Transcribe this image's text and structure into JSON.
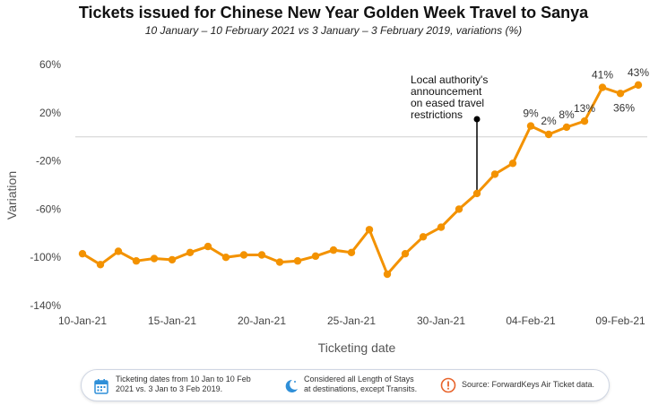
{
  "chart_data": {
    "type": "line",
    "title": "Tickets issued for Chinese New Year Golden Week Travel to Sanya",
    "subtitle": "10 January – 10 February 2021 vs 3 January – 3 February 2019, variations (%)",
    "xlabel": "Ticketing date",
    "ylabel": "Variation",
    "x_tick_labels": [
      "10-Jan-21",
      "15-Jan-21",
      "20-Jan-21",
      "25-Jan-21",
      "30-Jan-21",
      "04-Feb-21",
      "09-Feb-21"
    ],
    "y_tick_labels": [
      "60%",
      "20%",
      "-20%",
      "-60%",
      "-100%",
      "-140%"
    ],
    "ylim": [
      -140,
      60
    ],
    "x": [
      "10-Jan-21",
      "11-Jan-21",
      "12-Jan-21",
      "13-Jan-21",
      "14-Jan-21",
      "15-Jan-21",
      "16-Jan-21",
      "17-Jan-21",
      "18-Jan-21",
      "19-Jan-21",
      "20-Jan-21",
      "21-Jan-21",
      "22-Jan-21",
      "23-Jan-21",
      "24-Jan-21",
      "25-Jan-21",
      "26-Jan-21",
      "27-Jan-21",
      "28-Jan-21",
      "29-Jan-21",
      "30-Jan-21",
      "31-Jan-21",
      "01-Feb-21",
      "02-Feb-21",
      "03-Feb-21",
      "04-Feb-21",
      "05-Feb-21",
      "06-Feb-21",
      "07-Feb-21",
      "08-Feb-21",
      "09-Feb-21",
      "10-Feb-21"
    ],
    "series": [
      {
        "name": "",
        "color": "#f39200",
        "values": [
          -97,
          -106,
          -95,
          -103,
          -101,
          -102,
          -96,
          -91,
          -100,
          -98,
          -98,
          -104,
          -103,
          -99,
          -94,
          -96,
          -77,
          -114,
          -97,
          -83,
          -75,
          -60,
          -47,
          -31,
          -22,
          9,
          2,
          8,
          13,
          41,
          36,
          43
        ]
      }
    ],
    "data_labels": [
      {
        "index": 25,
        "text": "9%"
      },
      {
        "index": 26,
        "text": "2%"
      },
      {
        "index": 27,
        "text": "8%"
      },
      {
        "index": 28,
        "text": "13%"
      },
      {
        "index": 29,
        "text": "41%"
      },
      {
        "index": 30,
        "text": "36%"
      },
      {
        "index": 31,
        "text": "43%"
      }
    ],
    "reference_line": {
      "y": 0,
      "color": "#d0d0d0"
    },
    "annotation": {
      "index": 22,
      "text_lines": [
        "Local authority's",
        "announcement",
        "on eased travel",
        "restrictions"
      ]
    },
    "grid": false
  },
  "footer": {
    "items": [
      {
        "icon": "calendar-icon",
        "lines": [
          "Ticketing dates from 10 Jan to 10 Feb",
          "2021 vs. 3 Jan to 3 Feb 2019."
        ]
      },
      {
        "icon": "moon-icon",
        "lines": [
          "Considered all Length of Stays",
          "at destinations, except Transits."
        ]
      },
      {
        "icon": "exclamation-icon",
        "lines": [
          "Source: ForwardKeys Air Ticket data."
        ]
      }
    ],
    "accent": "#2f8fd8",
    "warning": "#e8642c"
  }
}
